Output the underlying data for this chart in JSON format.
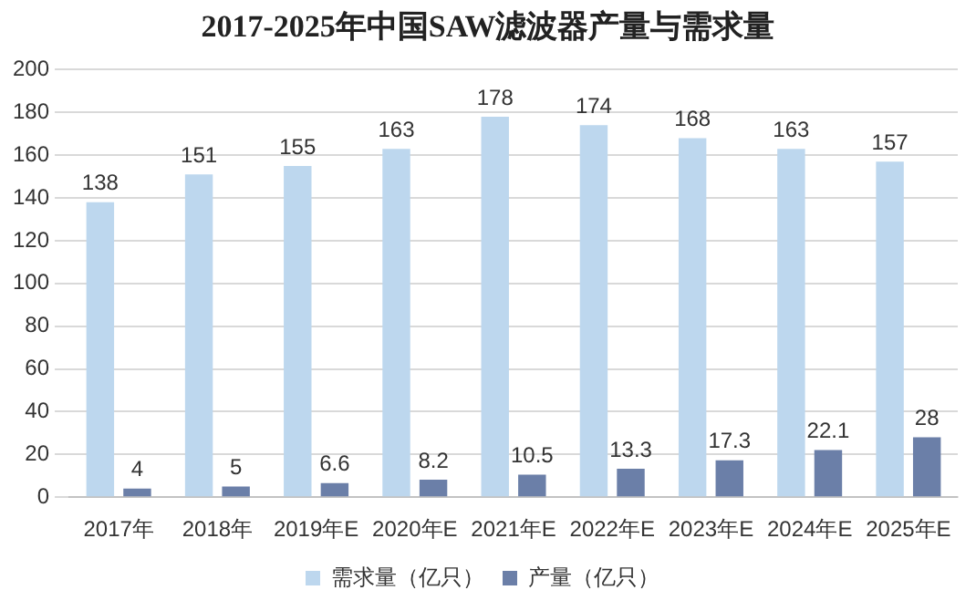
{
  "chart_data": {
    "type": "bar",
    "title": "2017-2025年中国SAW滤波器产量与需求量",
    "categories": [
      "2017年",
      "2018年",
      "2019年E",
      "2020年E",
      "2021年E",
      "2022年E",
      "2023年E",
      "2024年E",
      "2025年E"
    ],
    "series": [
      {
        "name": "需求量（亿只）",
        "color": "#bdd7ee",
        "values": [
          138,
          151,
          155,
          163,
          178,
          174,
          168,
          163,
          157
        ]
      },
      {
        "name": "产量（亿只）",
        "color": "#6b7fa8",
        "values": [
          4,
          5,
          6.6,
          8.2,
          10.5,
          13.3,
          17.3,
          22.1,
          28
        ]
      }
    ],
    "ylim": [
      0,
      200
    ],
    "yticks": [
      0,
      20,
      40,
      60,
      80,
      100,
      120,
      140,
      160,
      180,
      200
    ],
    "grid": "y",
    "legend": "bottom",
    "data_labels": true
  }
}
